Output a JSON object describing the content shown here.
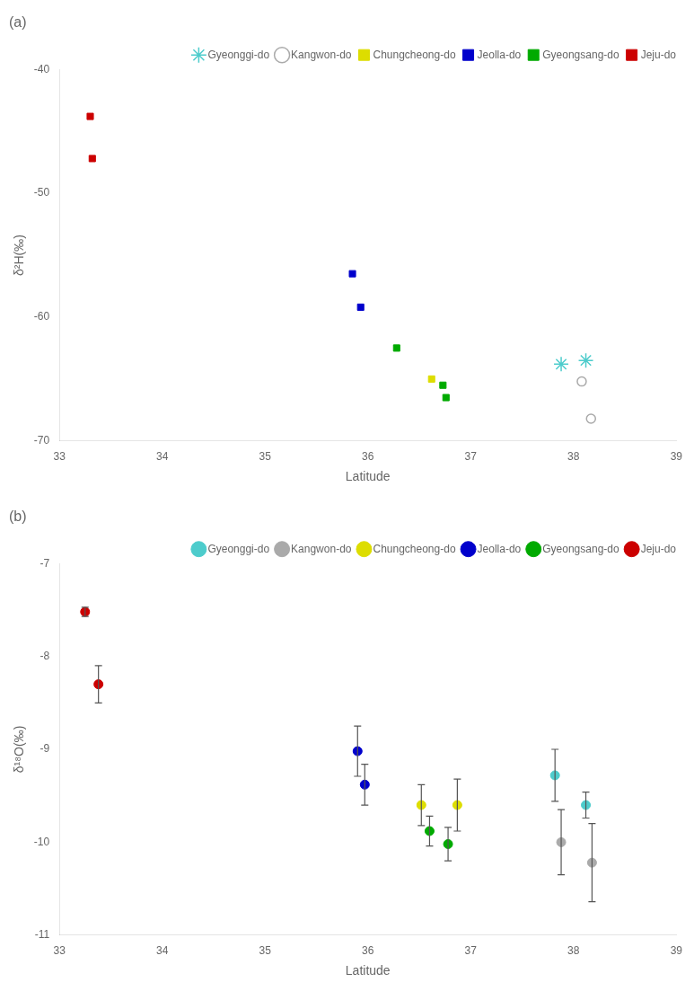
{
  "chart_data": [
    {
      "type": "scatter",
      "title": "(a)",
      "xlabel": "Latitude",
      "ylabel": "δ²H(‰)",
      "xlim": [
        33,
        39
      ],
      "ylim": [
        -70,
        -40
      ],
      "xticks": [
        33,
        34,
        35,
        36,
        37,
        38,
        39
      ],
      "yticks": [
        -70,
        -60,
        -50,
        -40
      ],
      "grid": false,
      "legend": "upper right",
      "series": [
        {
          "name": "Gyeonggi-do",
          "color": "#4DCCCC",
          "marker": "star",
          "x": [
            37.88,
            38.12
          ],
          "values": [
            -63.8,
            -63.5
          ]
        },
        {
          "name": "Kangwon-do",
          "color": "#AAAAAA",
          "marker": "open_circle",
          "x": [
            38.08,
            38.17
          ],
          "values": [
            -65.2,
            -68.2
          ]
        },
        {
          "name": "Chungcheong-do",
          "color": "#DDDD00",
          "marker": "square",
          "x": [
            36.62
          ],
          "values": [
            -65.0
          ]
        },
        {
          "name": "Jeolla-do",
          "color": "#0000CC",
          "marker": "square",
          "x": [
            35.85,
            35.93
          ],
          "values": [
            -56.5,
            -59.2
          ]
        },
        {
          "name": "Gyeongsang-do",
          "color": "#00AA00",
          "marker": "square",
          "x": [
            36.28,
            36.73,
            36.76
          ],
          "values": [
            -62.5,
            -65.5,
            -66.5
          ]
        },
        {
          "name": "Jeju-do",
          "color": "#CC0000",
          "marker": "square",
          "x": [
            33.3,
            33.32
          ],
          "values": [
            -43.8,
            -47.2
          ]
        }
      ]
    },
    {
      "type": "scatter",
      "title": "(b)",
      "xlabel": "Latitude",
      "ylabel": "δ¹⁸O(‰)",
      "xlim": [
        33,
        39
      ],
      "ylim": [
        -11,
        -7
      ],
      "xticks": [
        33,
        34,
        35,
        36,
        37,
        38,
        39
      ],
      "yticks": [
        -11,
        -10,
        -9,
        -8,
        -7
      ],
      "grid": false,
      "legend": "upper right",
      "series": [
        {
          "name": "Gyeonggi-do",
          "color": "#4DCCCC",
          "marker": "circle",
          "x": [
            37.82,
            38.12
          ],
          "values": [
            -9.28,
            -9.6
          ],
          "yerr": [
            0.28,
            0.14
          ]
        },
        {
          "name": "Kangwon-do",
          "color": "#AAAAAA",
          "marker": "circle",
          "x": [
            37.88,
            38.18
          ],
          "values": [
            -10.0,
            -10.22
          ],
          "yerr": [
            0.35,
            0.42
          ]
        },
        {
          "name": "Chungcheong-do",
          "color": "#DDDD00",
          "marker": "circle",
          "x": [
            36.52,
            36.87
          ],
          "values": [
            -9.6,
            -9.6
          ],
          "yerr": [
            0.22,
            0.28
          ]
        },
        {
          "name": "Jeolla-do",
          "color": "#0000CC",
          "marker": "circle",
          "x": [
            35.9,
            35.97
          ],
          "values": [
            -9.02,
            -9.38
          ],
          "yerr": [
            0.27,
            0.22
          ]
        },
        {
          "name": "Gyeongsang-do",
          "color": "#00AA00",
          "marker": "circle",
          "x": [
            36.6,
            36.78
          ],
          "values": [
            -9.88,
            -10.02
          ],
          "yerr": [
            0.16,
            0.18
          ]
        },
        {
          "name": "Jeju-do",
          "color": "#CC0000",
          "marker": "circle",
          "x": [
            33.25,
            33.38
          ],
          "values": [
            -7.52,
            -8.3
          ],
          "yerr": [
            0.05,
            0.2
          ]
        }
      ]
    }
  ]
}
